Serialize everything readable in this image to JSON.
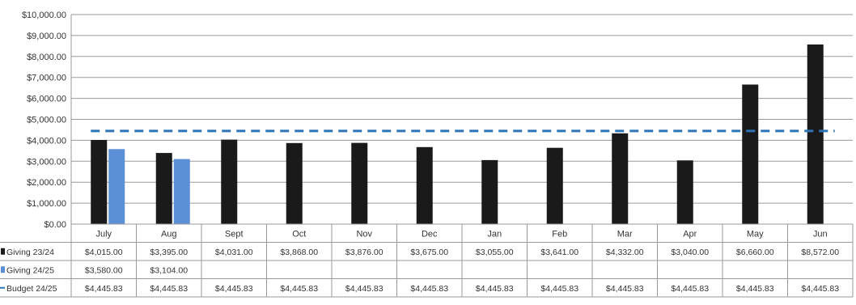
{
  "chart_data": {
    "type": "bar",
    "title": "",
    "categories": [
      "July",
      "Aug",
      "Sept",
      "Oct",
      "Nov",
      "Dec",
      "Jan",
      "Feb",
      "Mar",
      "Apr",
      "May",
      "Jun"
    ],
    "ylim": [
      0,
      10000
    ],
    "ytick_labels": [
      "$0.00",
      "$1,000.00",
      "$2,000.00",
      "$3,000.00",
      "$4,000.00",
      "$5,000.00",
      "$6,000.00",
      "$7,000.00",
      "$8,000.00",
      "$9,000.00",
      "$10,000.00"
    ],
    "grid": true,
    "series": [
      {
        "name": "Giving 23/24",
        "kind": "bar",
        "color": "#1a1a1a",
        "values": [
          4015,
          3395,
          4031,
          3868,
          3876,
          3675,
          3055,
          3641,
          4332,
          3040,
          6660,
          8572
        ],
        "labels": [
          "$4,015.00",
          "$3,395.00",
          "$4,031.00",
          "$3,868.00",
          "$3,876.00",
          "$3,675.00",
          "$3,055.00",
          "$3,641.00",
          "$4,332.00",
          "$3,040.00",
          "$6,660.00",
          "$8,572.00"
        ]
      },
      {
        "name": "Giving 24/25",
        "kind": "bar",
        "color": "#5b8fd6",
        "values": [
          3580,
          3104,
          null,
          null,
          null,
          null,
          null,
          null,
          null,
          null,
          null,
          null
        ],
        "labels": [
          "$3,580.00",
          "$3,104.00",
          "",
          "",
          "",
          "",
          "",
          "",
          "",
          "",
          "",
          ""
        ]
      },
      {
        "name": "Budget 24/25",
        "kind": "dashed-line",
        "color": "#2e75b6",
        "values": [
          4445.83,
          4445.83,
          4445.83,
          4445.83,
          4445.83,
          4445.83,
          4445.83,
          4445.83,
          4445.83,
          4445.83,
          4445.83,
          4445.83
        ],
        "labels": [
          "$4,445.83",
          "$4,445.83",
          "$4,445.83",
          "$4,445.83",
          "$4,445.83",
          "$4,445.83",
          "$4,445.83",
          "$4,445.83",
          "$4,445.83",
          "$4,445.83",
          "$4,445.83",
          "$4,445.83"
        ]
      }
    ]
  }
}
